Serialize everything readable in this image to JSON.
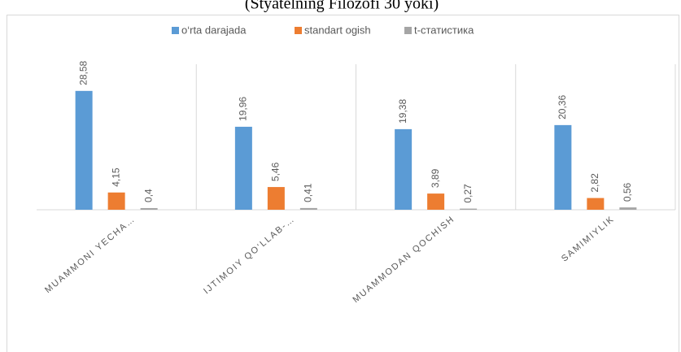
{
  "chart_data": {
    "type": "bar",
    "title": "(Styatelning Filozofi 30 yoki)",
    "categories": [
      "MUAMMONI YECHA…",
      "IJTIMOIY QO‘LLAB-…",
      "MUAMMODAN QOCHISH",
      "SAMIMIYLIK"
    ],
    "series": [
      {
        "name": "o‘rta darajada",
        "color": "#5b9bd5",
        "values": [
          28.58,
          19.96,
          19.38,
          20.36
        ],
        "value_labels": [
          "28,58",
          "19,96",
          "19,38",
          "20,36"
        ]
      },
      {
        "name": "standart ogish",
        "color": "#ed7d31",
        "values": [
          4.15,
          5.46,
          3.89,
          2.82
        ],
        "value_labels": [
          "4,15",
          "5,46",
          "3,89",
          "2,82"
        ]
      },
      {
        "name": "t-статистика",
        "color": "#a5a5a5",
        "values": [
          0.4,
          0.41,
          0.27,
          0.56
        ],
        "value_labels": [
          "0,4",
          "0,41",
          "0,27",
          "0,56"
        ]
      }
    ],
    "ylim": [
      0,
      35
    ]
  }
}
